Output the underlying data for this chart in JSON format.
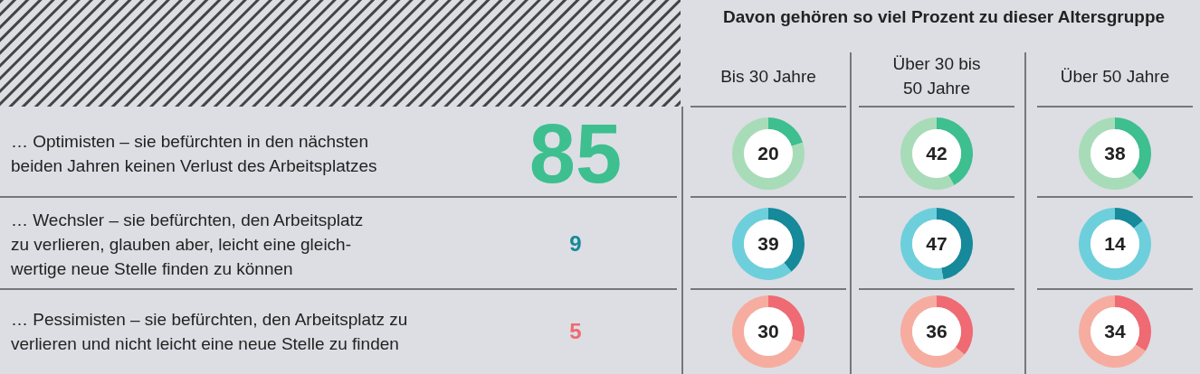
{
  "chart_data": [
    {
      "type": "other",
      "title": "Davon gehören so viel Prozent zu dieser Altersgruppe",
      "categories": [
        "… Optimisten – sie befürchten in den nächsten\nbeiden Jahren keinen Verlust des Arbeitsplatzes",
        "… Wechsler – sie befürchten, den Arbeitsplatz\nzu verlieren, glauben aber, leicht eine gleich-\nwertige neue Stelle finden zu können",
        "… Pessimisten – sie befürchten, den Arbeitsplatz zu\nverlieren und nicht leicht eine neue Stelle zu finden"
      ],
      "values": [
        85,
        9,
        5
      ],
      "data_labels": true,
      "colors": [
        "#3dbf8f",
        "#16899a",
        "#ef6a72"
      ],
      "annotations": [
        "Bis 30 Jahre",
        "Über 30 bis\n50 Jahre",
        "Über 50 Jahre"
      ]
    },
    {
      "type": "donut",
      "categories": [
        null,
        null
      ],
      "values": [
        20,
        80
      ],
      "colors": [
        "#3dbf8f",
        "#a8dcb8"
      ],
      "value_labels": [
        "20",
        null
      ]
    },
    {
      "type": "donut",
      "categories": [
        null,
        null
      ],
      "values": [
        42,
        58
      ],
      "colors": [
        "#3dbf8f",
        "#a8dcb8"
      ],
      "value_labels": [
        "42",
        null
      ]
    },
    {
      "type": "donut",
      "categories": [
        null,
        null
      ],
      "values": [
        38,
        62
      ],
      "colors": [
        "#3dbf8f",
        "#a8dcb8"
      ],
      "value_labels": [
        "38",
        null
      ]
    },
    {
      "type": "donut",
      "categories": [
        null,
        null
      ],
      "values": [
        39,
        61
      ],
      "colors": [
        "#16899a",
        "#6dcfdc"
      ],
      "value_labels": [
        "39",
        null
      ]
    },
    {
      "type": "donut",
      "categories": [
        null,
        null
      ],
      "values": [
        47,
        53
      ],
      "colors": [
        "#16899a",
        "#6dcfdc"
      ],
      "value_labels": [
        "47",
        null
      ]
    },
    {
      "type": "donut",
      "categories": [
        null,
        null
      ],
      "values": [
        14,
        86
      ],
      "colors": [
        "#16899a",
        "#6dcfdc"
      ],
      "value_labels": [
        "14",
        null
      ]
    },
    {
      "type": "donut",
      "categories": [
        null,
        null
      ],
      "values": [
        30,
        70
      ],
      "colors": [
        "#ef6a72",
        "#f7aca0"
      ],
      "value_labels": [
        "30",
        null
      ]
    },
    {
      "type": "donut",
      "categories": [
        null,
        null
      ],
      "values": [
        36,
        64
      ],
      "colors": [
        "#ef6a72",
        "#f7aca0"
      ],
      "value_labels": [
        "36",
        null
      ]
    },
    {
      "type": "donut",
      "categories": [
        null,
        null
      ],
      "values": [
        34,
        66
      ],
      "colors": [
        "#ef6a72",
        "#f7aca0"
      ],
      "value_labels": [
        "34",
        null
      ]
    }
  ]
}
